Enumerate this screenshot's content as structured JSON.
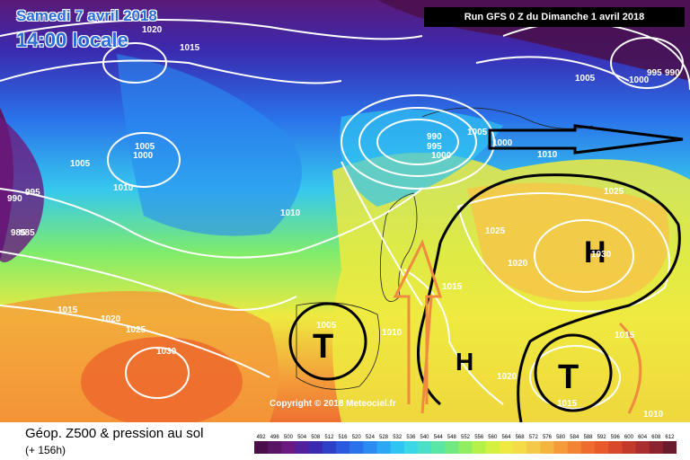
{
  "header": {
    "date": "Samedi 7 avril 2018",
    "time": "14:00 locale",
    "run": "Run GFS 0 Z du Dimanche 1 avril 2018"
  },
  "map": {
    "pressure_labels": [
      "1020",
      "1015",
      "995",
      "1005",
      "1000",
      "1010",
      "990",
      "985",
      "1000",
      "1005",
      "995",
      "990",
      "1000",
      "1010",
      "1005",
      "995",
      "990",
      "985",
      "1010",
      "1025",
      "1015",
      "1020",
      "1025",
      "1030",
      "1030",
      "1020",
      "1015",
      "1005",
      "1020",
      "1015",
      "1010",
      "1015",
      "1010",
      "1025",
      "1005",
      "1000"
    ],
    "symbols": [
      "H",
      "H",
      "T",
      "T"
    ],
    "copyright": "Copyright © 2018 Meteociel.fr"
  },
  "footer": {
    "product": "Géop. Z500 & pression au sol",
    "lead_time": "(+ 156h)",
    "scale_labels": [
      "492",
      "496",
      "500",
      "504",
      "508",
      "512",
      "516",
      "520",
      "524",
      "528",
      "532",
      "536",
      "540",
      "544",
      "548",
      "552",
      "556",
      "560",
      "564",
      "568",
      "572",
      "576",
      "580",
      "584",
      "588",
      "592",
      "596",
      "600",
      "604",
      "608",
      "612"
    ]
  },
  "colors": {
    "scale": [
      "#4a0f4a",
      "#5a1565",
      "#6a1a80",
      "#52209a",
      "#3b2ab0",
      "#2f40c8",
      "#2a58de",
      "#2a72ea",
      "#2a8cf0",
      "#2aa8f2",
      "#30c4f2",
      "#3ad8e6",
      "#4ae0c8",
      "#5ae6a4",
      "#70ea80",
      "#90ee60",
      "#b4f24a",
      "#d4f040",
      "#eeea40",
      "#f4dc48",
      "#f4c848",
      "#f4b440",
      "#f49c3a",
      "#f28434",
      "#ee6c2e",
      "#e85a2a",
      "#d8482a",
      "#c43a2a",
      "#aa2e30",
      "#8c2430",
      "#6a1c2c"
    ]
  }
}
